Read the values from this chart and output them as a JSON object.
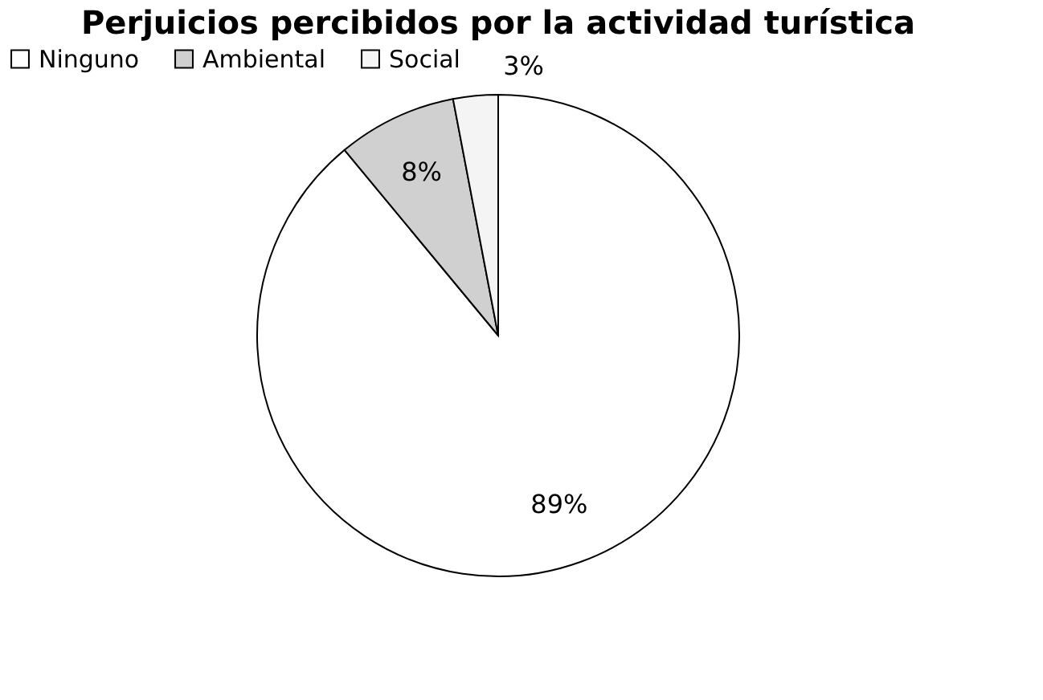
{
  "chart_data": {
    "type": "pie",
    "title": "Perjuicios percibidos por la actividad turística",
    "categories": [
      "Ninguno",
      "Ambiental",
      "Social"
    ],
    "values": [
      89,
      8,
      3
    ],
    "colors": [
      "#ffffff",
      "#d0d0d0",
      "#f4f4f4"
    ],
    "value_labels": [
      "89%",
      "8%",
      "3%"
    ],
    "legend": "top"
  }
}
